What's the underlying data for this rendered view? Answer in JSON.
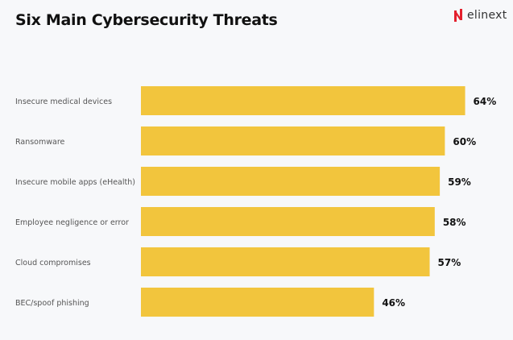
{
  "brand": {
    "name": "elinext",
    "accent": "#e3202d"
  },
  "chart_data": {
    "type": "bar",
    "orientation": "horizontal",
    "title": "Six Main Cybersecurity Threats",
    "categories": [
      "Insecure medical devices",
      "Ransomware",
      "Insecure mobile apps (eHealth)",
      "Employee negligence or error",
      "Cloud compromises",
      "BEC/spoof phishing"
    ],
    "values": [
      64,
      60,
      59,
      58,
      57,
      46
    ],
    "labels": [
      "64%",
      "60%",
      "59%",
      "58%",
      "57%",
      "46%"
    ],
    "unit": "%",
    "bar_color": "#f2c53d",
    "grid": false
  }
}
